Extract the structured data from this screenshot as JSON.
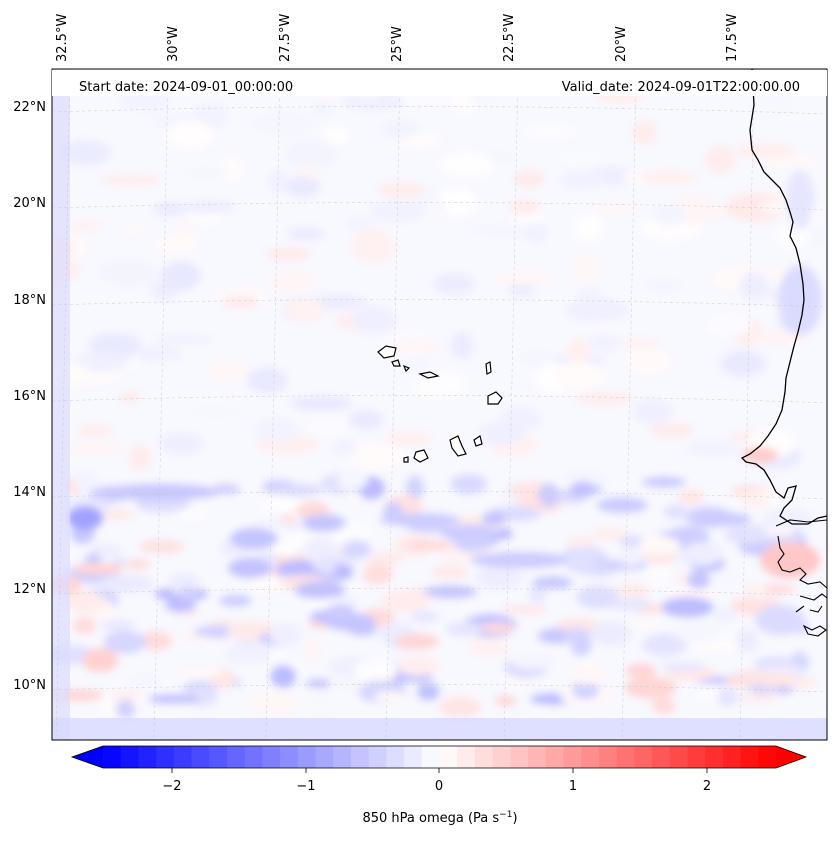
{
  "map": {
    "start_label": "Start date: 2024-09-01_00:00:00",
    "valid_label": "Valid_date: 2024-09-01T22:00:00.00",
    "top_lon_labels": [
      "32.5°W",
      "30°W",
      "27.5°W",
      "25°W",
      "22.5°W",
      "20°W",
      "17.5°W"
    ],
    "left_lat_labels": [
      "22°N",
      "20°N",
      "18°N",
      "16°N",
      "14°N",
      "12°N",
      "10°N"
    ],
    "field": "850 hPa omega",
    "lon_range": [
      -32.8,
      -15.2
    ],
    "lat_range": [
      8.9,
      22.8
    ]
  },
  "colorbar": {
    "tick_labels": [
      "−2",
      "−1",
      "0",
      "1",
      "2"
    ],
    "tick_values": [
      -2,
      -1,
      0,
      1,
      2
    ],
    "range": [
      -2.5,
      2.5
    ],
    "label_main": "850 hPa omega (Pa s",
    "label_sup": "−1",
    "label_end": ")",
    "colormap": "bwr",
    "extend": "both",
    "color_low": "#0000ff",
    "color_mid": "#ffffff",
    "color_high": "#ff0000"
  }
}
